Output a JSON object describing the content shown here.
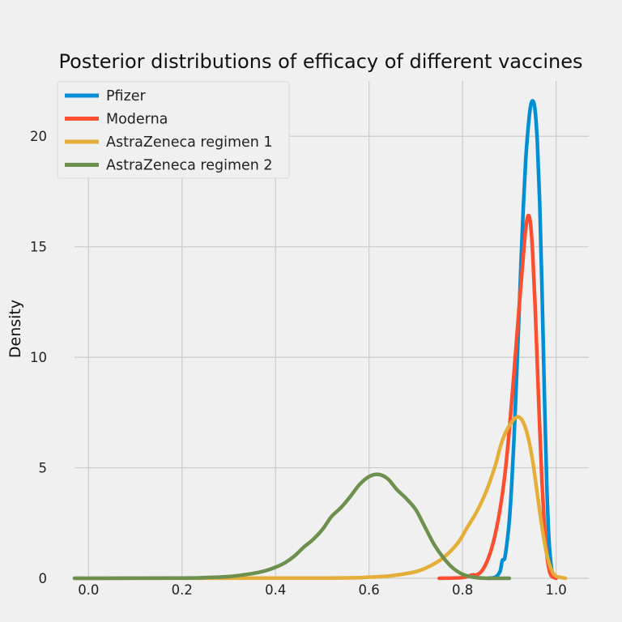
{
  "chart_data": {
    "type": "line",
    "title": "Posterior distributions of efficacy of different vaccines",
    "xlabel": "",
    "ylabel": "Density",
    "xlim": [
      -0.03,
      1.07
    ],
    "ylim": [
      0,
      22.5
    ],
    "xticks": [
      0.0,
      0.2,
      0.4,
      0.6,
      0.8,
      1.0
    ],
    "xtick_labels": [
      "0.0",
      "0.2",
      "0.4",
      "0.6",
      "0.8",
      "1.0"
    ],
    "yticks": [
      0,
      5,
      10,
      15,
      20
    ],
    "ytick_labels": [
      "0",
      "5",
      "10",
      "15",
      "20"
    ],
    "grid": true,
    "legend_position": "top-left",
    "series": [
      {
        "name": "Pfizer",
        "color": "#008fd5",
        "points": [
          [
            0.855,
            0
          ],
          [
            0.87,
            0.05
          ],
          [
            0.88,
            0.3
          ],
          [
            0.885,
            0.8
          ],
          [
            0.89,
            0.9
          ],
          [
            0.895,
            1.6
          ],
          [
            0.9,
            2.6
          ],
          [
            0.905,
            4.2
          ],
          [
            0.91,
            6.3
          ],
          [
            0.915,
            8.8
          ],
          [
            0.92,
            11.5
          ],
          [
            0.925,
            14.3
          ],
          [
            0.93,
            16.8
          ],
          [
            0.935,
            18.9
          ],
          [
            0.94,
            20.3
          ],
          [
            0.945,
            21.3
          ],
          [
            0.95,
            21.6
          ],
          [
            0.955,
            21.2
          ],
          [
            0.96,
            19.7
          ],
          [
            0.965,
            17.0
          ],
          [
            0.97,
            13.0
          ],
          [
            0.975,
            8.4
          ],
          [
            0.98,
            4.3
          ],
          [
            0.985,
            1.7
          ],
          [
            0.99,
            0.5
          ],
          [
            0.995,
            0.1
          ],
          [
            1.0,
            0
          ]
        ]
      },
      {
        "name": "Moderna",
        "color": "#fc4f30",
        "points": [
          [
            0.75,
            0
          ],
          [
            0.8,
            0.03
          ],
          [
            0.82,
            0.15
          ],
          [
            0.83,
            0.15
          ],
          [
            0.84,
            0.3
          ],
          [
            0.85,
            0.65
          ],
          [
            0.86,
            1.2
          ],
          [
            0.87,
            2.0
          ],
          [
            0.88,
            3.1
          ],
          [
            0.89,
            4.6
          ],
          [
            0.9,
            6.7
          ],
          [
            0.91,
            9.3
          ],
          [
            0.92,
            12.0
          ],
          [
            0.93,
            14.6
          ],
          [
            0.935,
            15.8
          ],
          [
            0.94,
            16.4
          ],
          [
            0.945,
            16.1
          ],
          [
            0.95,
            14.7
          ],
          [
            0.955,
            12.4
          ],
          [
            0.96,
            9.6
          ],
          [
            0.965,
            6.8
          ],
          [
            0.97,
            4.3
          ],
          [
            0.975,
            2.4
          ],
          [
            0.98,
            1.1
          ],
          [
            0.985,
            0.4
          ],
          [
            0.99,
            0.1
          ],
          [
            1.0,
            0
          ]
        ]
      },
      {
        "name": "AstraZeneca regimen 1",
        "color": "#e5ae38",
        "points": [
          [
            -0.03,
            0
          ],
          [
            0.5,
            0.01
          ],
          [
            0.6,
            0.05
          ],
          [
            0.65,
            0.12
          ],
          [
            0.7,
            0.3
          ],
          [
            0.73,
            0.55
          ],
          [
            0.76,
            0.95
          ],
          [
            0.79,
            1.6
          ],
          [
            0.81,
            2.3
          ],
          [
            0.83,
            3.0
          ],
          [
            0.85,
            3.9
          ],
          [
            0.87,
            5.1
          ],
          [
            0.88,
            5.9
          ],
          [
            0.89,
            6.5
          ],
          [
            0.9,
            6.9
          ],
          [
            0.91,
            7.2
          ],
          [
            0.92,
            7.3
          ],
          [
            0.93,
            7.05
          ],
          [
            0.94,
            6.4
          ],
          [
            0.95,
            5.3
          ],
          [
            0.96,
            3.8
          ],
          [
            0.97,
            2.3
          ],
          [
            0.98,
            1.1
          ],
          [
            0.99,
            0.4
          ],
          [
            1.0,
            0.1
          ],
          [
            1.02,
            0
          ]
        ]
      },
      {
        "name": "AstraZeneca regimen 2",
        "color": "#6d904f",
        "points": [
          [
            -0.03,
            0
          ],
          [
            0.2,
            0.01
          ],
          [
            0.25,
            0.03
          ],
          [
            0.3,
            0.08
          ],
          [
            0.33,
            0.15
          ],
          [
            0.36,
            0.25
          ],
          [
            0.38,
            0.35
          ],
          [
            0.4,
            0.5
          ],
          [
            0.42,
            0.7
          ],
          [
            0.44,
            1.0
          ],
          [
            0.46,
            1.4
          ],
          [
            0.48,
            1.75
          ],
          [
            0.5,
            2.2
          ],
          [
            0.52,
            2.8
          ],
          [
            0.54,
            3.2
          ],
          [
            0.56,
            3.7
          ],
          [
            0.58,
            4.25
          ],
          [
            0.6,
            4.6
          ],
          [
            0.62,
            4.7
          ],
          [
            0.64,
            4.5
          ],
          [
            0.66,
            4.0
          ],
          [
            0.68,
            3.6
          ],
          [
            0.7,
            3.1
          ],
          [
            0.72,
            2.3
          ],
          [
            0.74,
            1.5
          ],
          [
            0.76,
            0.9
          ],
          [
            0.78,
            0.45
          ],
          [
            0.8,
            0.18
          ],
          [
            0.82,
            0.06
          ],
          [
            0.85,
            0
          ],
          [
            0.9,
            0
          ]
        ]
      }
    ]
  }
}
